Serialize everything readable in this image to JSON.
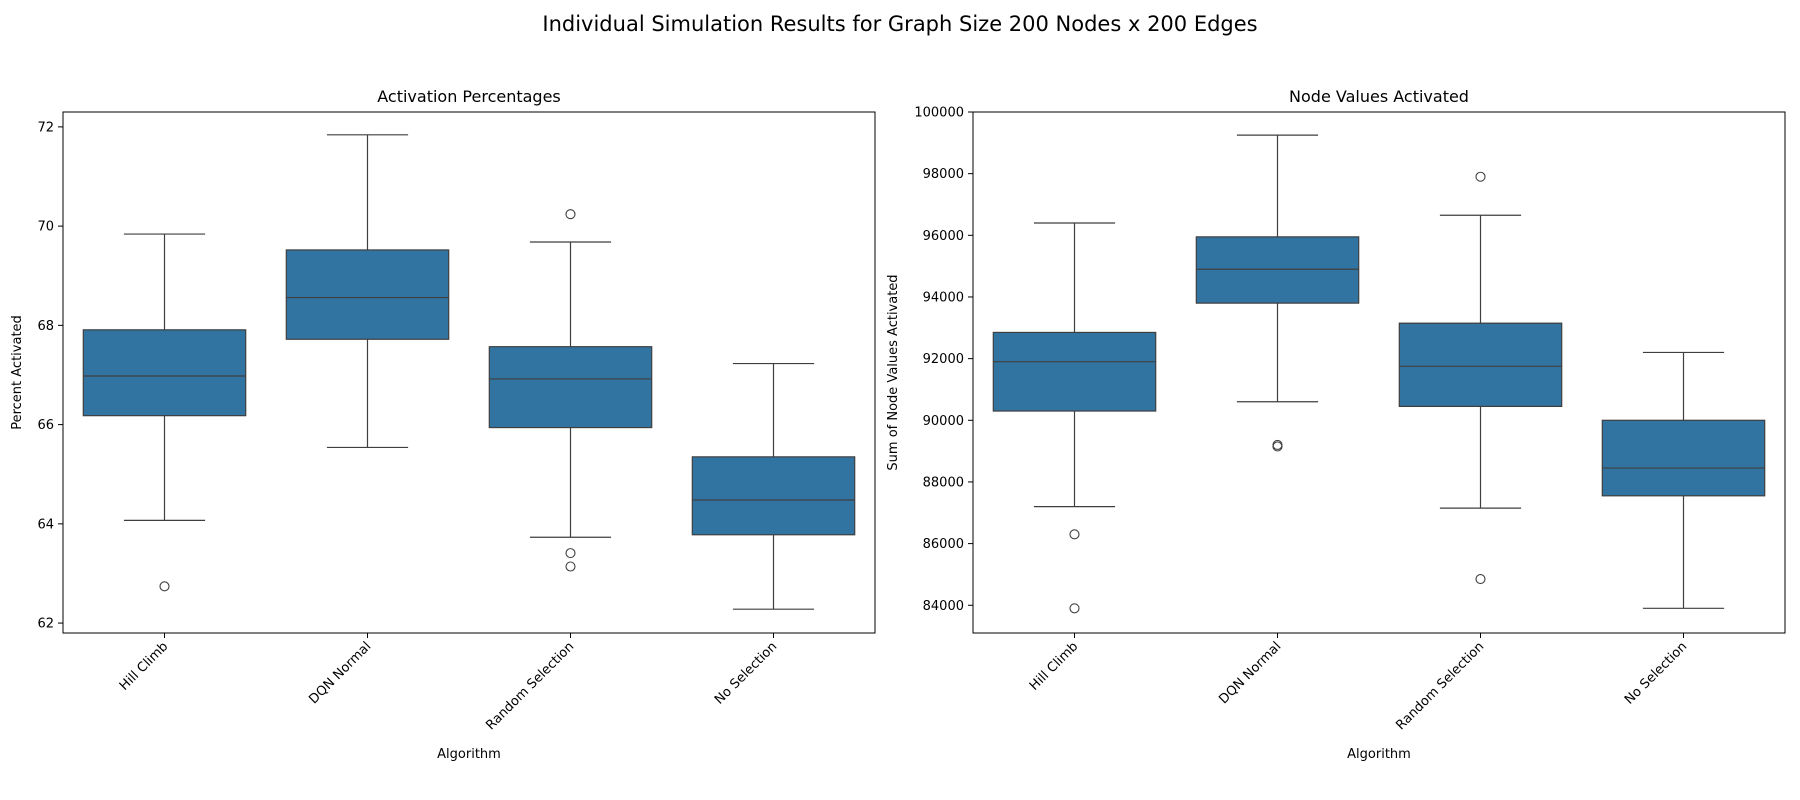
{
  "figure": {
    "suptitle": "Individual Simulation Results for Graph Size 200 Nodes x 200 Edges"
  },
  "colors": {
    "box_fill": "#3274a1",
    "box_edge": "#3f3f3f",
    "axis": "#000000"
  },
  "chart_data": [
    {
      "type": "box",
      "title": "Activation Percentages",
      "xlabel": "Algorithm",
      "ylabel": "Percent Activated",
      "ylim": [
        61.8,
        72.3
      ],
      "yticks": [
        62,
        64,
        66,
        68,
        70,
        72
      ],
      "ytick_labels": [
        "62",
        "64",
        "66",
        "68",
        "70",
        "72"
      ],
      "categories": [
        "Hill Climb",
        "DQN Normal",
        "Random Selection",
        "No Selection"
      ],
      "boxes": [
        {
          "whisker_low": 64.07,
          "q1": 66.18,
          "median": 66.98,
          "q3": 67.91,
          "whisker_high": 69.84,
          "outliers": [
            62.74
          ]
        },
        {
          "whisker_low": 65.54,
          "q1": 67.72,
          "median": 68.56,
          "q3": 69.52,
          "whisker_high": 71.84,
          "outliers": []
        },
        {
          "whisker_low": 63.73,
          "q1": 65.94,
          "median": 66.92,
          "q3": 67.57,
          "whisker_high": 69.68,
          "outliers": [
            70.24,
            63.41,
            63.14
          ]
        },
        {
          "whisker_low": 62.28,
          "q1": 63.78,
          "median": 64.48,
          "q3": 65.35,
          "whisker_high": 67.23,
          "outliers": []
        }
      ]
    },
    {
      "type": "box",
      "title": "Node Values Activated",
      "xlabel": "Algorithm",
      "ylabel": "Sum of Node Values Activated",
      "ylim": [
        83100,
        100000
      ],
      "yticks": [
        84000,
        86000,
        88000,
        90000,
        92000,
        94000,
        96000,
        98000,
        100000
      ],
      "ytick_labels": [
        "84000",
        "86000",
        "88000",
        "90000",
        "92000",
        "94000",
        "96000",
        "98000",
        "100000"
      ],
      "categories": [
        "Hill Climb",
        "DQN Normal",
        "Random Selection",
        "No Selection"
      ],
      "boxes": [
        {
          "whisker_low": 87200,
          "q1": 90300,
          "median": 91900,
          "q3": 92850,
          "whisker_high": 96400,
          "outliers": [
            86300,
            83900
          ]
        },
        {
          "whisker_low": 90600,
          "q1": 93800,
          "median": 94900,
          "q3": 95950,
          "whisker_high": 99250,
          "outliers": [
            89200,
            89150
          ]
        },
        {
          "whisker_low": 87150,
          "q1": 90450,
          "median": 91750,
          "q3": 93150,
          "whisker_high": 96650,
          "outliers": [
            97900,
            84850
          ]
        },
        {
          "whisker_low": 83900,
          "q1": 87550,
          "median": 88450,
          "q3": 90000,
          "whisker_high": 92200,
          "outliers": []
        }
      ]
    }
  ]
}
